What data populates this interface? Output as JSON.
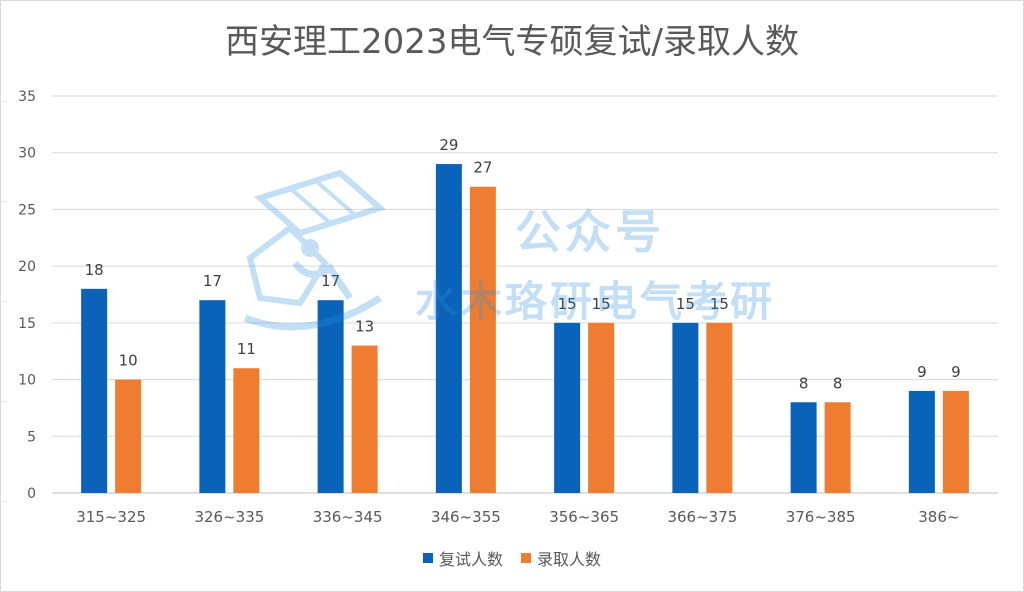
{
  "colors": {
    "series1": "#0a63b8",
    "series2": "#ee7d31",
    "watermark": "#2b8fe0"
  },
  "watermark": {
    "line1": "公众号",
    "line2": "水木珞研电气考研"
  },
  "chart_data": {
    "type": "bar",
    "title": "西安理工2023电气专硕复试/录取人数",
    "xlabel": "",
    "ylabel": "",
    "ylim": [
      0,
      35
    ],
    "yticks": [
      0,
      5,
      10,
      15,
      20,
      25,
      30,
      35
    ],
    "grid": true,
    "legend_position": "bottom",
    "categories": [
      "315~325",
      "326~335",
      "336~345",
      "346~355",
      "356~365",
      "366~375",
      "376~385",
      "386~"
    ],
    "series": [
      {
        "name": "复试人数",
        "values": [
          18,
          17,
          17,
          29,
          15,
          15,
          8,
          9
        ]
      },
      {
        "name": "录取人数",
        "values": [
          10,
          11,
          13,
          27,
          15,
          15,
          8,
          9
        ]
      }
    ]
  }
}
